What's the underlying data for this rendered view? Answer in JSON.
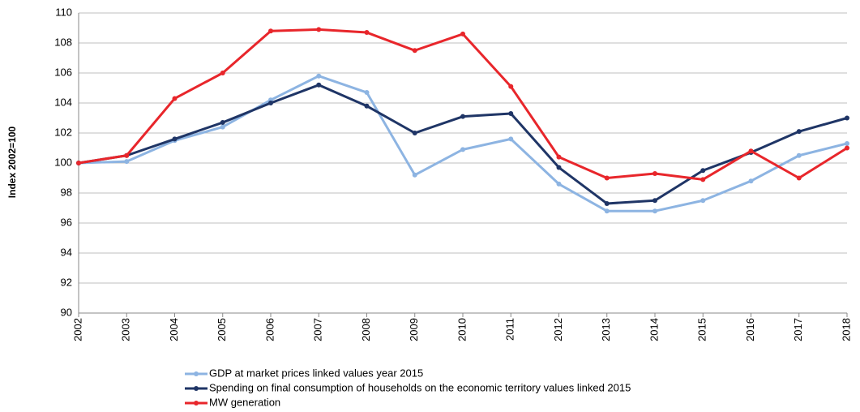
{
  "chart_data": {
    "type": "line",
    "ylabel": "Index 2002=100",
    "categories": [
      "2002",
      "2003",
      "2004",
      "2005",
      "2006",
      "2007",
      "2008",
      "2009",
      "2010",
      "2011",
      "2012",
      "2013",
      "2014",
      "2015",
      "2016",
      "2017",
      "2018"
    ],
    "series": [
      {
        "name": "GDP at market prices linked values year 2015",
        "color": "#8db4e2",
        "values": [
          100,
          100.1,
          101.5,
          102.4,
          104.2,
          105.8,
          104.7,
          99.2,
          100.9,
          101.6,
          98.6,
          96.8,
          96.8,
          97.5,
          98.8,
          100.5,
          101.3
        ]
      },
      {
        "name": "Spending on final consumption of households on the economic territory values linked 2015",
        "color": "#1f3566",
        "values": [
          100,
          100.5,
          101.6,
          102.7,
          104.0,
          105.2,
          103.8,
          102.0,
          103.1,
          103.3,
          99.7,
          97.3,
          97.5,
          99.5,
          100.7,
          102.1,
          103.0
        ]
      },
      {
        "name": "MW generation",
        "color": "#e8262b",
        "values": [
          100,
          100.5,
          104.3,
          106.0,
          108.8,
          108.9,
          108.7,
          107.5,
          108.6,
          105.1,
          100.4,
          99.0,
          99.3,
          98.9,
          100.8,
          99.0,
          101.0
        ]
      }
    ],
    "ylim": [
      90,
      110
    ],
    "yticks": [
      90,
      92,
      94,
      96,
      98,
      100,
      102,
      104,
      106,
      108,
      110
    ],
    "grid": true
  }
}
